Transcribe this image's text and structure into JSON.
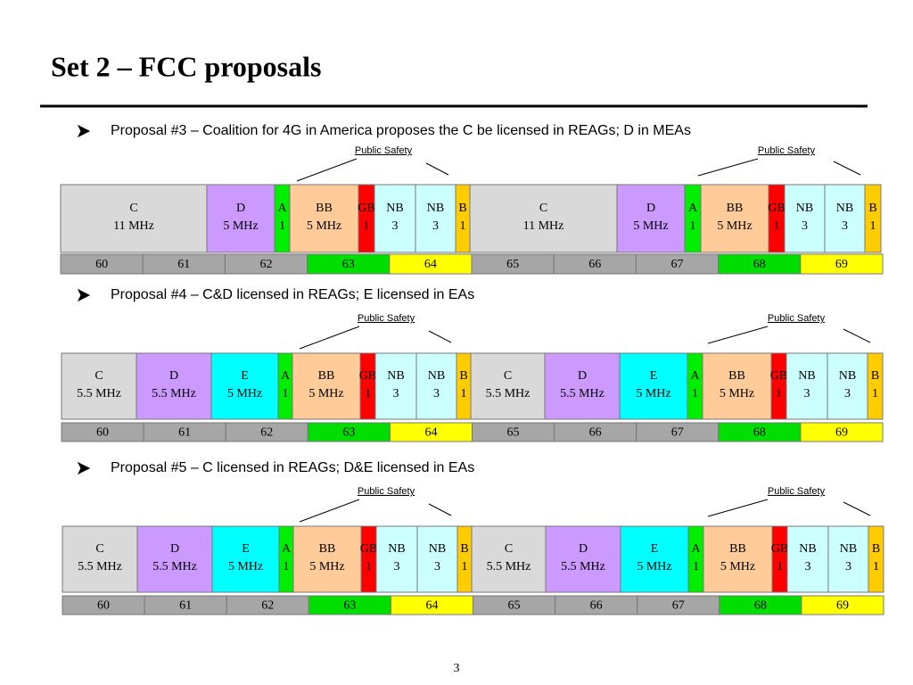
{
  "title": "Set 2 – FCC proposals",
  "page_number": "3",
  "proposals": [
    {
      "text": "Proposal #3 – Coalition for 4G in America proposes the C be licensed in REAGs; D in MEAs",
      "annotations": [
        "Public Safety",
        "Public Safety"
      ],
      "blocks": [
        {
          "name": "C",
          "size": "11 MHz",
          "color": "#d9d9d9"
        },
        {
          "name": "D",
          "size": "5 MHz",
          "color": "#cc99ff"
        },
        {
          "name": "A",
          "size": "1",
          "color": "#00ee00"
        },
        {
          "name": "BB",
          "size": "5 MHz",
          "color": "#ffcc99"
        },
        {
          "name": "GB",
          "size": "1",
          "color": "#ff0000"
        },
        {
          "name": "NB",
          "size": "3",
          "color": "#ccffff"
        },
        {
          "name": "NB",
          "size": "3",
          "color": "#ccffff"
        },
        {
          "name": "B",
          "size": "1",
          "color": "#ffcc00"
        },
        {
          "name": "C",
          "size": "11 MHz",
          "color": "#d9d9d9"
        },
        {
          "name": "D",
          "size": "5 MHz",
          "color": "#cc99ff"
        },
        {
          "name": "A",
          "size": "1",
          "color": "#00ee00"
        },
        {
          "name": "BB",
          "size": "5 MHz",
          "color": "#ffcc99"
        },
        {
          "name": "GB",
          "size": "1",
          "color": "#ff0000"
        },
        {
          "name": "NB",
          "size": "3",
          "color": "#ccffff"
        },
        {
          "name": "NB",
          "size": "3",
          "color": "#ccffff"
        },
        {
          "name": "B",
          "size": "1",
          "color": "#ffcc00"
        }
      ],
      "channels": [
        {
          "label": "60",
          "color": "#a6a6a6"
        },
        {
          "label": "61",
          "color": "#a6a6a6"
        },
        {
          "label": "62",
          "color": "#a6a6a6"
        },
        {
          "label": "63",
          "color": "#00dd00"
        },
        {
          "label": "64",
          "color": "#ffff00"
        },
        {
          "label": "65",
          "color": "#a6a6a6"
        },
        {
          "label": "66",
          "color": "#a6a6a6"
        },
        {
          "label": "67",
          "color": "#a6a6a6"
        },
        {
          "label": "68",
          "color": "#00dd00"
        },
        {
          "label": "69",
          "color": "#ffff00"
        }
      ]
    },
    {
      "text": "Proposal #4 – C&D licensed in REAGs; E licensed in EAs",
      "annotations": [
        "Public Safety",
        "Public Safety"
      ],
      "blocks": [
        {
          "name": "C",
          "size": "5.5 MHz",
          "color": "#d9d9d9"
        },
        {
          "name": "D",
          "size": "5.5 MHz",
          "color": "#cc99ff"
        },
        {
          "name": "E",
          "size": "5 MHz",
          "color": "#00ffff"
        },
        {
          "name": "A",
          "size": "1",
          "color": "#00ee00"
        },
        {
          "name": "BB",
          "size": "5 MHz",
          "color": "#ffcc99"
        },
        {
          "name": "GB",
          "size": "1",
          "color": "#ff0000"
        },
        {
          "name": "NB",
          "size": "3",
          "color": "#ccffff"
        },
        {
          "name": "NB",
          "size": "3",
          "color": "#ccffff"
        },
        {
          "name": "B",
          "size": "1",
          "color": "#ffcc00"
        },
        {
          "name": "C",
          "size": "5.5 MHz",
          "color": "#d9d9d9"
        },
        {
          "name": "D",
          "size": "5.5 MHz",
          "color": "#cc99ff"
        },
        {
          "name": "E",
          "size": "5 MHz",
          "color": "#00ffff"
        },
        {
          "name": "A",
          "size": "1",
          "color": "#00ee00"
        },
        {
          "name": "BB",
          "size": "5 MHz",
          "color": "#ffcc99"
        },
        {
          "name": "GB",
          "size": "1",
          "color": "#ff0000"
        },
        {
          "name": "NB",
          "size": "3",
          "color": "#ccffff"
        },
        {
          "name": "NB",
          "size": "3",
          "color": "#ccffff"
        },
        {
          "name": "B",
          "size": "1",
          "color": "#ffcc00"
        }
      ],
      "channels": [
        {
          "label": "60",
          "color": "#a6a6a6"
        },
        {
          "label": "61",
          "color": "#a6a6a6"
        },
        {
          "label": "62",
          "color": "#a6a6a6"
        },
        {
          "label": "63",
          "color": "#00dd00"
        },
        {
          "label": "64",
          "color": "#ffff00"
        },
        {
          "label": "65",
          "color": "#a6a6a6"
        },
        {
          "label": "66",
          "color": "#a6a6a6"
        },
        {
          "label": "67",
          "color": "#a6a6a6"
        },
        {
          "label": "68",
          "color": "#00dd00"
        },
        {
          "label": "69",
          "color": "#ffff00"
        }
      ]
    },
    {
      "text": "Proposal #5 – C licensed in REAGs; D&E licensed in EAs",
      "annotations": [
        "Public Safety",
        "Public Safety"
      ],
      "blocks": [
        {
          "name": "C",
          "size": "5.5 MHz",
          "color": "#d9d9d9"
        },
        {
          "name": "D",
          "size": "5.5 MHz",
          "color": "#cc99ff"
        },
        {
          "name": "E",
          "size": "5 MHz",
          "color": "#00ffff"
        },
        {
          "name": "A",
          "size": "1",
          "color": "#00ee00"
        },
        {
          "name": "BB",
          "size": "5 MHz",
          "color": "#ffcc99"
        },
        {
          "name": "GB",
          "size": "1",
          "color": "#ff0000"
        },
        {
          "name": "NB",
          "size": "3",
          "color": "#ccffff"
        },
        {
          "name": "NB",
          "size": "3",
          "color": "#ccffff"
        },
        {
          "name": "B",
          "size": "1",
          "color": "#ffcc00"
        },
        {
          "name": "C",
          "size": "5.5 MHz",
          "color": "#d9d9d9"
        },
        {
          "name": "D",
          "size": "5.5 MHz",
          "color": "#cc99ff"
        },
        {
          "name": "E",
          "size": "5 MHz",
          "color": "#00ffff"
        },
        {
          "name": "A",
          "size": "1",
          "color": "#00ee00"
        },
        {
          "name": "BB",
          "size": "5 MHz",
          "color": "#ffcc99"
        },
        {
          "name": "GB",
          "size": "1",
          "color": "#ff0000"
        },
        {
          "name": "NB",
          "size": "3",
          "color": "#ccffff"
        },
        {
          "name": "NB",
          "size": "3",
          "color": "#ccffff"
        },
        {
          "name": "B",
          "size": "1",
          "color": "#ffcc00"
        }
      ],
      "channels": [
        {
          "label": "60",
          "color": "#a6a6a6"
        },
        {
          "label": "61",
          "color": "#a6a6a6"
        },
        {
          "label": "62",
          "color": "#a6a6a6"
        },
        {
          "label": "63",
          "color": "#00dd00"
        },
        {
          "label": "64",
          "color": "#ffff00"
        },
        {
          "label": "65",
          "color": "#a6a6a6"
        },
        {
          "label": "66",
          "color": "#a6a6a6"
        },
        {
          "label": "67",
          "color": "#a6a6a6"
        },
        {
          "label": "68",
          "color": "#00dd00"
        },
        {
          "label": "69",
          "color": "#ffff00"
        }
      ]
    }
  ]
}
